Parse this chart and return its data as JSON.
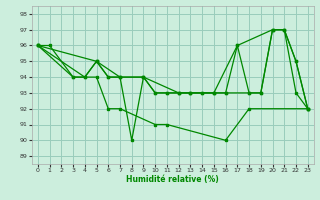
{
  "xlabel": "Humidité relative (%)",
  "bg_color": "#cceedd",
  "grid_color": "#99ccbb",
  "line_color": "#008800",
  "xlim": [
    -0.5,
    23.5
  ],
  "ylim": [
    88.5,
    98.5
  ],
  "yticks": [
    89,
    90,
    91,
    92,
    93,
    94,
    95,
    96,
    97,
    98
  ],
  "xticks": [
    0,
    1,
    2,
    3,
    4,
    5,
    6,
    7,
    8,
    9,
    10,
    11,
    12,
    13,
    14,
    15,
    16,
    17,
    18,
    19,
    20,
    21,
    22,
    23
  ],
  "lines": [
    {
      "x": [
        0,
        1,
        3,
        4,
        5,
        6,
        7,
        8,
        9,
        12,
        13,
        15,
        17,
        20,
        21,
        22,
        23
      ],
      "y": [
        96,
        96,
        94,
        94,
        95,
        94,
        94,
        90,
        94,
        93,
        93,
        93,
        96,
        97,
        97,
        95,
        92
      ]
    },
    {
      "x": [
        0,
        3,
        5,
        6,
        7,
        10,
        11,
        16,
        18,
        23
      ],
      "y": [
        96,
        94,
        94,
        92,
        92,
        91,
        91,
        90,
        92,
        92
      ]
    },
    {
      "x": [
        0,
        4,
        5,
        6,
        7,
        9,
        10,
        11,
        12,
        13,
        14,
        15,
        16,
        18,
        19,
        20,
        21,
        22,
        23
      ],
      "y": [
        96,
        94,
        95,
        94,
        94,
        94,
        93,
        93,
        93,
        93,
        93,
        93,
        93,
        93,
        93,
        97,
        97,
        93,
        92
      ]
    },
    {
      "x": [
        0,
        5,
        7,
        9,
        10,
        11,
        12,
        13,
        14,
        15,
        16,
        17,
        18,
        19,
        20,
        21,
        22,
        23
      ],
      "y": [
        96,
        95,
        94,
        94,
        93,
        93,
        93,
        93,
        93,
        93,
        93,
        96,
        93,
        93,
        97,
        97,
        95,
        92
      ]
    }
  ]
}
